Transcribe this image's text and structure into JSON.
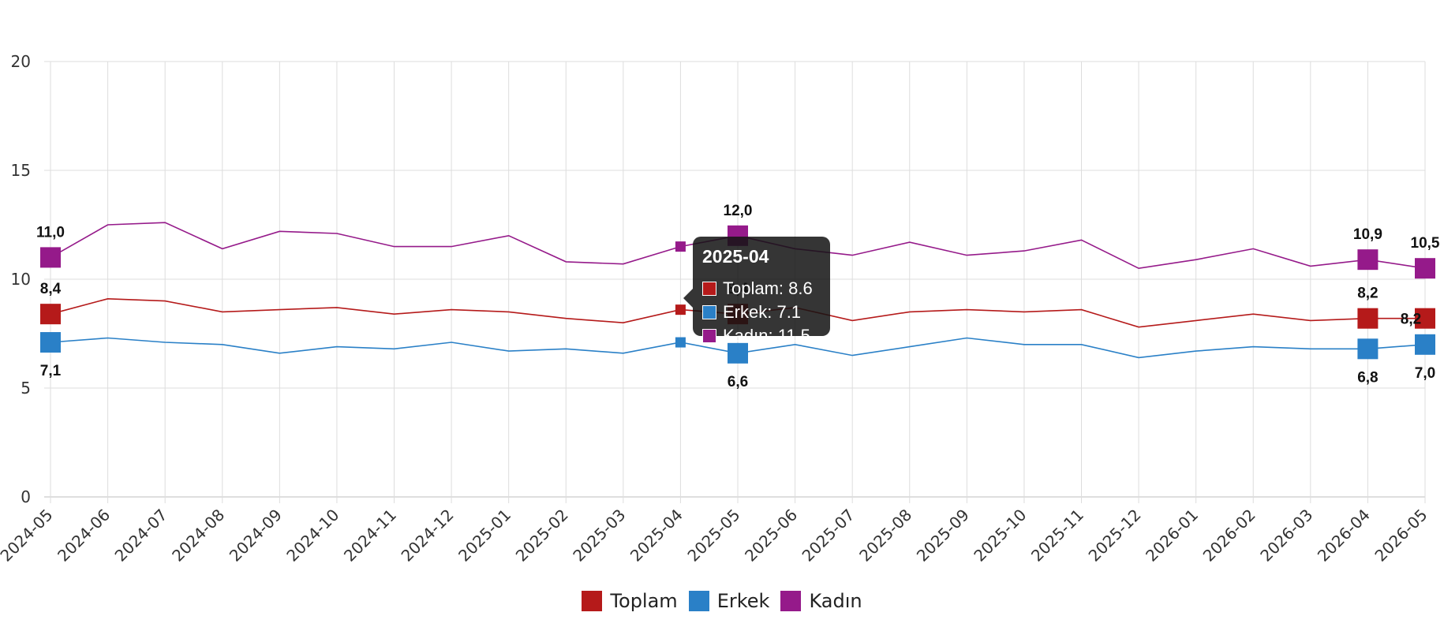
{
  "chart_data": {
    "type": "line",
    "categories": [
      "2024-05",
      "2024-06",
      "2024-07",
      "2024-08",
      "2024-09",
      "2024-10",
      "2024-11",
      "2024-12",
      "2025-01",
      "2025-02",
      "2025-03",
      "2025-04",
      "2025-05",
      "2025-06",
      "2025-07",
      "2025-08",
      "2025-09",
      "2025-10",
      "2025-11",
      "2025-12",
      "2026-01",
      "2026-02",
      "2026-03",
      "2026-04",
      "2026-05"
    ],
    "series": [
      {
        "name": "Toplam",
        "color": "#b51a1a",
        "values": [
          8.4,
          9.1,
          9.0,
          8.5,
          8.6,
          8.7,
          8.4,
          8.6,
          8.5,
          8.2,
          8.0,
          8.6,
          8.4,
          8.7,
          8.1,
          8.5,
          8.6,
          8.5,
          8.6,
          7.8,
          8.1,
          8.4,
          8.1,
          8.2,
          8.2
        ],
        "labels": [
          {
            "index": 0,
            "text": "8,4"
          },
          {
            "index": 12,
            "text": "8,4"
          },
          {
            "index": 23,
            "text": "8,2"
          },
          {
            "index": 24,
            "text": "8,2"
          }
        ]
      },
      {
        "name": "Erkek",
        "color": "#2a80c7",
        "values": [
          7.1,
          7.3,
          7.1,
          7.0,
          6.6,
          6.9,
          6.8,
          7.1,
          6.7,
          6.8,
          6.6,
          7.1,
          6.6,
          7.0,
          6.5,
          6.9,
          7.3,
          7.0,
          7.0,
          6.4,
          6.7,
          6.9,
          6.8,
          6.8,
          7.0
        ],
        "labels": [
          {
            "index": 0,
            "text": "7,1"
          },
          {
            "index": 12,
            "text": "6,6"
          },
          {
            "index": 23,
            "text": "6,8"
          },
          {
            "index": 24,
            "text": "7,0"
          }
        ]
      },
      {
        "name": "Kadın",
        "color": "#951a8a",
        "values": [
          11.0,
          12.5,
          12.6,
          11.4,
          12.2,
          12.1,
          11.5,
          11.5,
          12.0,
          10.8,
          10.7,
          11.5,
          12.0,
          11.4,
          11.1,
          11.7,
          11.1,
          11.3,
          11.8,
          10.5,
          10.9,
          11.4,
          10.6,
          10.9,
          10.5
        ],
        "labels": [
          {
            "index": 0,
            "text": "11,0"
          },
          {
            "index": 12,
            "text": "12,0"
          },
          {
            "index": 23,
            "text": "10,9"
          },
          {
            "index": 24,
            "text": "10,5"
          }
        ]
      }
    ],
    "ylim": [
      0,
      20
    ],
    "yticks": [
      "0",
      "5",
      "10",
      "15",
      "20"
    ],
    "grid": true,
    "legend_position": "bottom-center",
    "highlighted_category_index": 11
  },
  "tooltip": {
    "title": "2025-04",
    "rows": [
      {
        "text": "Toplam: 8.6",
        "color": "#b51a1a"
      },
      {
        "text": "Erkek: 7.1",
        "color": "#2a80c7"
      },
      {
        "text": "Kadın: 11.5",
        "color": "#951a8a"
      }
    ]
  }
}
